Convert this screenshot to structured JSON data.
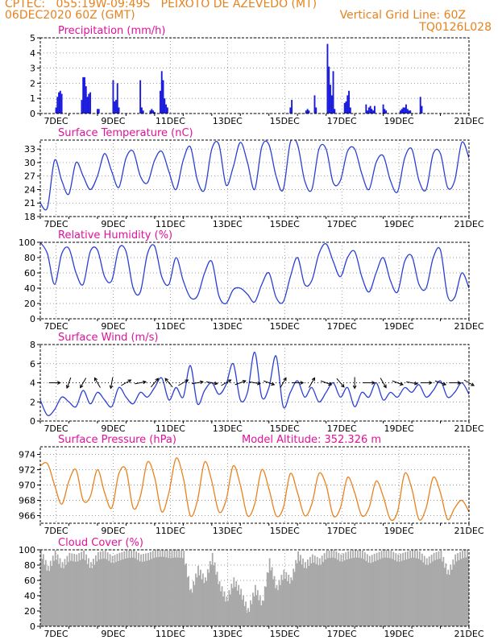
{
  "header": {
    "line1_left": "CPTEC:   055:19W-09:49S   PEIXOTO DE AZEVEDO (MT)",
    "line2_left": "06DEC2020 60Z (GMT)",
    "line2_right": "Vertical Grid Line: 60Z",
    "line3_right": "TQ0126L028",
    "color": "#e8821e"
  },
  "x_ticks": [
    "7DEC",
    "9DEC",
    "11DEC",
    "13DEC",
    "15DEC",
    "17DEC",
    "19DEC",
    "21DEC"
  ],
  "colors": {
    "title": "#e0119a",
    "line": "#2b3fd4",
    "bars": "#1a1adc",
    "cloud": "#a9a9a9",
    "pressure": "#e8821e",
    "wind_arrow": "#000000"
  },
  "chart_data": [
    {
      "type": "bar",
      "title": "Precipitation (mm/h)",
      "ylim": [
        0,
        5
      ],
      "yticks": [
        "0",
        "1",
        "2",
        "3",
        "4",
        "5"
      ],
      "x_range_days": [
        0,
        15
      ],
      "grid": true,
      "x": [
        0.55,
        0.6,
        0.65,
        0.7,
        0.75,
        1.45,
        1.5,
        1.55,
        1.6,
        1.65,
        1.7,
        1.75,
        2.0,
        2.05,
        2.55,
        2.6,
        2.65,
        2.7,
        2.75,
        3.5,
        3.55,
        3.6,
        3.85,
        3.9,
        3.95,
        4.0,
        4.2,
        4.25,
        4.3,
        4.35,
        4.4,
        4.45,
        8.75,
        8.8,
        9.3,
        9.35,
        9.4,
        9.6,
        9.65,
        10.05,
        10.1,
        10.15,
        10.2,
        10.25,
        10.3,
        10.65,
        10.7,
        10.75,
        10.8,
        10.85,
        11.4,
        11.45,
        11.5,
        11.55,
        11.6,
        11.65,
        11.7,
        12.0,
        12.05,
        12.1,
        12.6,
        12.65,
        12.7,
        12.75,
        12.8,
        12.85,
        12.9,
        12.95,
        13.3,
        13.35
      ],
      "values": [
        0.4,
        1.1,
        1.4,
        1.5,
        1.3,
        0.9,
        2.4,
        2.4,
        1.8,
        1.1,
        1.3,
        1.4,
        0.3,
        0.3,
        2.2,
        0.8,
        0.9,
        2.0,
        0.4,
        2.2,
        0.4,
        0.2,
        0.2,
        0.3,
        0.2,
        0.1,
        1.5,
        2.8,
        2.2,
        1.0,
        0.6,
        0.4,
        0.4,
        0.9,
        0.2,
        0.3,
        0.2,
        1.2,
        0.4,
        4.6,
        3.1,
        1.9,
        1.2,
        2.8,
        0.3,
        0.7,
        0.8,
        1.2,
        1.5,
        0.4,
        0.6,
        0.2,
        0.4,
        0.5,
        0.3,
        0.2,
        0.5,
        0.6,
        0.3,
        0.2,
        0.2,
        0.3,
        0.4,
        0.4,
        0.6,
        0.3,
        0.2,
        0.2,
        1.1,
        0.5
      ]
    },
    {
      "type": "line",
      "title": "Surface Temperature (nC)",
      "ylim": [
        18,
        35
      ],
      "yticks": [
        "18",
        "21",
        "24",
        "27",
        "30",
        "33"
      ],
      "x_range_days": [
        0,
        15
      ],
      "grid": true,
      "series": [
        {
          "x": [
            0,
            0.25,
            0.5,
            0.75,
            1.0,
            1.25,
            1.5,
            1.75,
            2.0,
            2.25,
            2.5,
            2.75,
            3.0,
            3.25,
            3.5,
            3.75,
            4.0,
            4.25,
            4.5,
            4.75,
            5.0,
            5.25,
            5.5,
            5.75,
            6.0,
            6.25,
            6.5,
            6.75,
            7.0,
            7.25,
            7.5,
            7.75,
            8.0,
            8.25,
            8.5,
            8.75,
            9.0,
            9.25,
            9.5,
            9.75,
            10.0,
            10.25,
            10.5,
            10.75,
            11.0,
            11.25,
            11.5,
            11.75,
            12.0,
            12.25,
            12.5,
            12.75,
            13.0,
            13.25,
            13.5,
            13.75,
            14.0,
            14.25,
            14.5,
            14.75,
            15.0
          ],
          "y": [
            21,
            20,
            30.5,
            26,
            23,
            30,
            27,
            24,
            27,
            32,
            28,
            24.5,
            31,
            32.5,
            27,
            25.5,
            30.5,
            32.5,
            28,
            24,
            30.5,
            33.5,
            26,
            24,
            33,
            34,
            25,
            29,
            34.5,
            30,
            24,
            33.5,
            34,
            27,
            24,
            34.5,
            34,
            26,
            24,
            33,
            33,
            25.5,
            26,
            32.5,
            33,
            27.5,
            24,
            30,
            31.5,
            26,
            23.5,
            31,
            33,
            26,
            24,
            32,
            32,
            24.5,
            26,
            34.5,
            31
          ]
        }
      ]
    },
    {
      "type": "line",
      "title": "Relative Humidity (%)",
      "ylim": [
        0,
        100
      ],
      "yticks": [
        "0",
        "20",
        "40",
        "60",
        "80",
        "100"
      ],
      "x_range_days": [
        0,
        15
      ],
      "grid": true,
      "series": [
        {
          "x": [
            0,
            0.25,
            0.5,
            0.75,
            1.0,
            1.25,
            1.5,
            1.75,
            2.0,
            2.25,
            2.5,
            2.75,
            3.0,
            3.25,
            3.5,
            3.75,
            4.0,
            4.25,
            4.5,
            4.75,
            5.0,
            5.25,
            5.5,
            5.75,
            6.0,
            6.25,
            6.5,
            6.75,
            7.0,
            7.25,
            7.5,
            7.75,
            8.0,
            8.25,
            8.5,
            8.75,
            9.0,
            9.25,
            9.5,
            9.75,
            10.0,
            10.25,
            10.5,
            10.75,
            11.0,
            11.25,
            11.5,
            11.75,
            12.0,
            12.25,
            12.5,
            12.75,
            13.0,
            13.25,
            13.5,
            13.75,
            14.0,
            14.25,
            14.5,
            14.75,
            15.0
          ],
          "y": [
            100,
            85,
            45,
            85,
            92,
            60,
            45,
            88,
            90,
            55,
            50,
            92,
            88,
            40,
            35,
            85,
            95,
            55,
            45,
            80,
            50,
            28,
            30,
            60,
            75,
            30,
            20,
            38,
            40,
            32,
            22,
            45,
            60,
            28,
            22,
            55,
            80,
            45,
            50,
            85,
            98,
            75,
            55,
            80,
            88,
            55,
            35,
            60,
            80,
            50,
            35,
            75,
            82,
            45,
            40,
            80,
            90,
            30,
            28,
            60,
            40
          ]
        }
      ]
    },
    {
      "type": "line",
      "title": "Surface Wind (m/s)",
      "ylim": [
        0,
        8
      ],
      "yticks": [
        "0",
        "2",
        "4",
        "6",
        "8"
      ],
      "x_range_days": [
        0,
        15
      ],
      "grid": true,
      "series": [
        {
          "x": [
            0,
            0.25,
            0.5,
            0.75,
            1.0,
            1.25,
            1.5,
            1.75,
            2.0,
            2.25,
            2.5,
            2.75,
            3.0,
            3.25,
            3.5,
            3.75,
            4.0,
            4.25,
            4.5,
            4.75,
            5.0,
            5.25,
            5.5,
            5.75,
            6.0,
            6.25,
            6.5,
            6.75,
            7.0,
            7.25,
            7.5,
            7.75,
            8.0,
            8.25,
            8.5,
            8.75,
            9.0,
            9.25,
            9.5,
            9.75,
            10.0,
            10.25,
            10.5,
            10.75,
            11.0,
            11.25,
            11.5,
            11.75,
            12.0,
            12.25,
            12.5,
            12.75,
            13.0,
            13.25,
            13.5,
            13.75,
            14.0,
            14.25,
            14.5,
            14.75,
            15.0
          ],
          "y": [
            2.2,
            0.6,
            1.2,
            2.5,
            2.0,
            1.5,
            3.2,
            1.8,
            3.0,
            2.2,
            1.5,
            3.5,
            2.5,
            1.8,
            3.0,
            2.5,
            3.5,
            4.5,
            2.2,
            3.5,
            2.5,
            5.8,
            1.8,
            3.2,
            4.0,
            2.8,
            3.8,
            6.0,
            2.2,
            3.0,
            7.2,
            2.5,
            3.5,
            6.8,
            1.5,
            3.0,
            4.2,
            2.5,
            3.5,
            2.0,
            3.0,
            4.0,
            2.5,
            3.5,
            1.5,
            3.0,
            2.5,
            4.0,
            2.2,
            3.0,
            2.5,
            3.5,
            3.0,
            3.8,
            2.5,
            3.2,
            4.2,
            2.5,
            3.0,
            4.0,
            2.8
          ]
        }
      ],
      "wind_arrows": {
        "level": 4,
        "x": [
          0.5,
          1.0,
          1.5,
          2.0,
          2.5,
          3.0,
          3.5,
          4.0,
          4.5,
          5.0,
          5.5,
          6.0,
          6.5,
          7.0,
          7.5,
          8.0,
          8.5,
          9.0,
          9.5,
          10.0,
          10.5,
          11.0,
          11.5,
          12.0,
          12.5,
          13.0,
          13.5,
          14.0,
          14.5,
          15.0
        ],
        "dir_deg": [
          90,
          200,
          210,
          330,
          190,
          60,
          80,
          40,
          320,
          60,
          80,
          100,
          60,
          70,
          100,
          110,
          30,
          90,
          30,
          110,
          140,
          180,
          90,
          150,
          110,
          100,
          90,
          110,
          90,
          120
        ]
      }
    },
    {
      "type": "line",
      "title": "Surface Pressure (hPa)",
      "annotation": "Model Altitude: 352.326 m",
      "ylim": [
        965,
        975
      ],
      "yticks": [
        "966",
        "968",
        "970",
        "972",
        "974"
      ],
      "x_range_days": [
        0,
        15
      ],
      "grid": true,
      "series": [
        {
          "x": [
            0,
            0.25,
            0.5,
            0.75,
            1.0,
            1.25,
            1.5,
            1.75,
            2.0,
            2.25,
            2.5,
            2.75,
            3.0,
            3.25,
            3.5,
            3.75,
            4.0,
            4.25,
            4.5,
            4.75,
            5.0,
            5.25,
            5.5,
            5.75,
            6.0,
            6.25,
            6.5,
            6.75,
            7.0,
            7.25,
            7.5,
            7.75,
            8.0,
            8.25,
            8.5,
            8.75,
            9.0,
            9.25,
            9.5,
            9.75,
            10.0,
            10.25,
            10.5,
            10.75,
            11.0,
            11.25,
            11.5,
            11.75,
            12.0,
            12.25,
            12.5,
            12.75,
            13.0,
            13.25,
            13.5,
            13.75,
            14.0,
            14.25,
            14.5,
            14.75,
            15.0
          ],
          "y": [
            972.5,
            972.8,
            970,
            967.5,
            970.5,
            972,
            968,
            968.5,
            972,
            969,
            967,
            971.5,
            972,
            967,
            968.5,
            973,
            971,
            966.5,
            969,
            973.5,
            971,
            966,
            968,
            973,
            970.5,
            966.5,
            968,
            972.5,
            970,
            966,
            967.5,
            972,
            969.5,
            966,
            967,
            971.5,
            969,
            966,
            967.5,
            971.5,
            970,
            966,
            967,
            971,
            969,
            966,
            967,
            970.5,
            968.5,
            965.5,
            966.5,
            971.5,
            969.5,
            965.5,
            967,
            971,
            969,
            965.5,
            967,
            968,
            966.5
          ]
        }
      ]
    },
    {
      "type": "area",
      "title": "Cloud Cover (%)",
      "ylim": [
        0,
        100
      ],
      "yticks": [
        "0",
        "20",
        "40",
        "60",
        "80",
        "100"
      ],
      "x_range_days": [
        0,
        15
      ],
      "grid": true,
      "series": [
        {
          "x": [
            0,
            0.25,
            0.5,
            0.75,
            1.0,
            1.25,
            1.5,
            1.75,
            2.0,
            2.25,
            2.5,
            2.75,
            3.0,
            3.25,
            3.5,
            3.75,
            4.0,
            4.25,
            4.5,
            4.75,
            5.0,
            5.25,
            5.5,
            5.75,
            6.0,
            6.25,
            6.5,
            6.75,
            7.0,
            7.25,
            7.5,
            7.75,
            8.0,
            8.25,
            8.5,
            8.75,
            9.0,
            9.25,
            9.5,
            9.75,
            10.0,
            10.25,
            10.5,
            10.75,
            11.0,
            11.25,
            11.5,
            11.75,
            12.0,
            12.25,
            12.5,
            12.75,
            13.0,
            13.25,
            13.5,
            13.75,
            14.0,
            14.25,
            14.5,
            14.75,
            15.0
          ],
          "y": [
            98,
            75,
            95,
            80,
            92,
            90,
            95,
            80,
            93,
            95,
            88,
            92,
            95,
            96,
            90,
            92,
            96,
            97,
            95,
            96,
            95,
            45,
            75,
            60,
            92,
            55,
            35,
            60,
            45,
            20,
            50,
            30,
            85,
            50,
            70,
            60,
            94,
            80,
            90,
            85,
            95,
            96,
            90,
            94,
            96,
            95,
            88,
            92,
            96,
            95,
            90,
            93,
            96,
            94,
            85,
            92,
            95,
            70,
            90,
            95,
            97
          ]
        }
      ]
    }
  ]
}
